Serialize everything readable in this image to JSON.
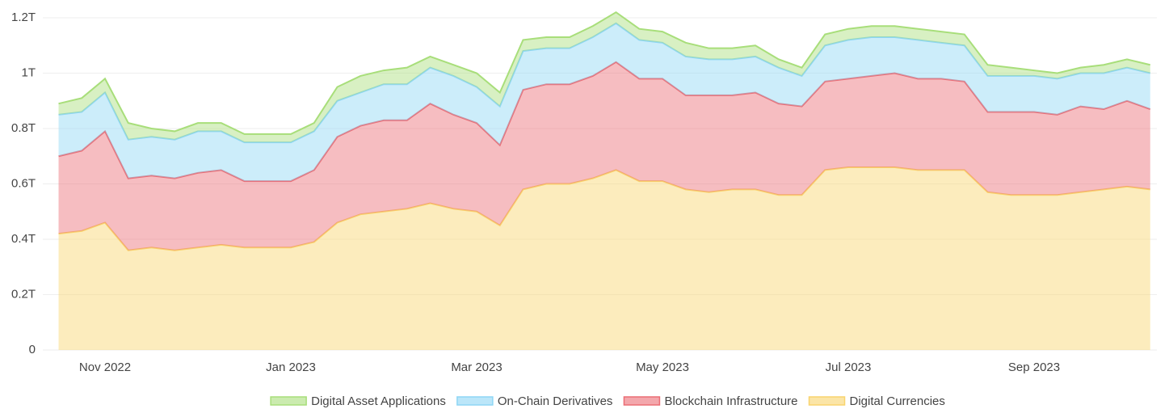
{
  "chart_data": {
    "type": "stacked_area",
    "categories": [
      null,
      null,
      "Nov 2022",
      null,
      null,
      null,
      null,
      null,
      null,
      null,
      "Jan 2023",
      null,
      null,
      null,
      null,
      null,
      null,
      null,
      "Mar 2023",
      null,
      null,
      null,
      null,
      null,
      null,
      null,
      "May 2023",
      null,
      null,
      null,
      null,
      null,
      null,
      null,
      "Jul 2023",
      null,
      null,
      null,
      null,
      null,
      null,
      null,
      "Sep 2023",
      null,
      null,
      null,
      null,
      null
    ],
    "series": [
      {
        "name": "Digital Asset Applications",
        "color": "#a8de7a",
        "values": [
          0.04,
          0.05,
          0.05,
          0.06,
          0.03,
          0.03,
          0.03,
          0.03,
          0.03,
          0.03,
          0.03,
          0.03,
          0.05,
          0.06,
          0.05,
          0.06,
          0.04,
          0.04,
          0.05,
          0.05,
          0.04,
          0.04,
          0.04,
          0.04,
          0.04,
          0.04,
          0.04,
          0.05,
          0.04,
          0.04,
          0.04,
          0.03,
          0.03,
          0.04,
          0.04,
          0.04,
          0.04,
          0.04,
          0.04,
          0.04,
          0.04,
          0.03,
          0.02,
          0.02,
          0.02,
          0.03,
          0.03,
          0.03
        ]
      },
      {
        "name": "On-Chain Derivatives",
        "color": "#8ed6f5",
        "values": [
          0.15,
          0.14,
          0.14,
          0.14,
          0.14,
          0.14,
          0.15,
          0.14,
          0.14,
          0.14,
          0.14,
          0.14,
          0.13,
          0.12,
          0.13,
          0.13,
          0.13,
          0.14,
          0.13,
          0.14,
          0.14,
          0.13,
          0.13,
          0.14,
          0.14,
          0.14,
          0.13,
          0.14,
          0.13,
          0.13,
          0.13,
          0.13,
          0.11,
          0.13,
          0.14,
          0.14,
          0.13,
          0.14,
          0.13,
          0.13,
          0.13,
          0.13,
          0.13,
          0.13,
          0.12,
          0.13,
          0.12,
          0.13
        ]
      },
      {
        "name": "Blockchain Infrastructure",
        "color": "#eb6d75",
        "values": [
          0.28,
          0.29,
          0.33,
          0.26,
          0.26,
          0.26,
          0.27,
          0.27,
          0.24,
          0.24,
          0.24,
          0.26,
          0.31,
          0.32,
          0.33,
          0.32,
          0.36,
          0.34,
          0.32,
          0.29,
          0.36,
          0.36,
          0.36,
          0.37,
          0.39,
          0.37,
          0.37,
          0.34,
          0.35,
          0.34,
          0.35,
          0.33,
          0.32,
          0.32,
          0.32,
          0.33,
          0.34,
          0.33,
          0.33,
          0.32,
          0.29,
          0.3,
          0.3,
          0.29,
          0.31,
          0.29,
          0.31,
          0.29
        ]
      },
      {
        "name": "Digital Currencies",
        "color": "#f9d46d",
        "values": [
          0.42,
          0.43,
          0.46,
          0.36,
          0.37,
          0.36,
          0.37,
          0.38,
          0.37,
          0.37,
          0.37,
          0.39,
          0.46,
          0.49,
          0.5,
          0.51,
          0.53,
          0.51,
          0.5,
          0.45,
          0.58,
          0.6,
          0.6,
          0.62,
          0.65,
          0.61,
          0.61,
          0.58,
          0.57,
          0.58,
          0.58,
          0.56,
          0.56,
          0.65,
          0.66,
          0.66,
          0.66,
          0.65,
          0.65,
          0.65,
          0.57,
          0.56,
          0.56,
          0.56,
          0.57,
          0.58,
          0.59,
          0.58
        ]
      }
    ],
    "ylim": [
      0,
      1.2
    ],
    "yticks": [
      0,
      {
        "value": 0.2,
        "label": "0.2T"
      },
      {
        "value": 0.4,
        "label": "0.4T"
      },
      {
        "value": 0.6,
        "label": "0.6T"
      },
      {
        "value": 0.8,
        "label": "0.8T"
      },
      {
        "value": 1,
        "label": "1T"
      },
      {
        "value": 1.2,
        "label": "1.2T"
      }
    ],
    "grid": true,
    "legend": "bottom"
  }
}
